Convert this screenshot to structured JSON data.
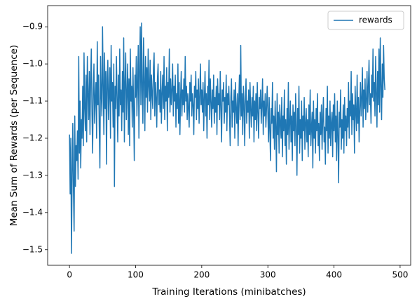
{
  "chart_data": {
    "type": "line",
    "xlabel": "Training Iterations (minibatches)",
    "ylabel": "Mean Sum of Rewards (per Sequence)",
    "legend": "upper right",
    "xlim": [
      -33,
      516
    ],
    "ylim": [
      -1.542,
      -0.843
    ],
    "xticks": [
      0,
      100,
      200,
      300,
      400,
      500
    ],
    "yticks": [
      {
        "value": -1.5,
        "label": "−1.5"
      },
      {
        "value": -1.4,
        "label": "−1.4"
      },
      {
        "value": -1.3,
        "label": "−1.3"
      },
      {
        "value": -1.2,
        "label": "−1.2"
      },
      {
        "value": -1.1,
        "label": "−1.1"
      },
      {
        "value": -1.0,
        "label": "−1.0"
      },
      {
        "value": -0.9,
        "label": "−0.9"
      }
    ],
    "x": [
      0,
      1,
      2,
      3,
      4,
      5,
      6,
      7,
      8,
      9,
      10,
      11,
      12,
      13,
      14,
      15,
      16,
      17,
      18,
      19,
      20,
      21,
      22,
      23,
      24,
      25,
      26,
      27,
      28,
      29,
      30,
      31,
      32,
      33,
      34,
      35,
      36,
      37,
      38,
      39,
      40,
      41,
      42,
      43,
      44,
      45,
      46,
      47,
      48,
      49,
      50,
      51,
      52,
      53,
      54,
      55,
      56,
      57,
      58,
      59,
      60,
      61,
      62,
      63,
      64,
      65,
      66,
      67,
      68,
      69,
      70,
      71,
      72,
      73,
      74,
      75,
      76,
      77,
      78,
      79,
      80,
      81,
      82,
      83,
      84,
      85,
      86,
      87,
      88,
      89,
      90,
      91,
      92,
      93,
      94,
      95,
      96,
      97,
      98,
      99,
      100,
      101,
      102,
      103,
      104,
      105,
      106,
      107,
      108,
      109,
      110,
      111,
      112,
      113,
      114,
      115,
      116,
      117,
      118,
      119,
      120,
      121,
      122,
      123,
      124,
      125,
      126,
      127,
      128,
      129,
      130,
      131,
      132,
      133,
      134,
      135,
      136,
      137,
      138,
      139,
      140,
      141,
      142,
      143,
      144,
      145,
      146,
      147,
      148,
      149,
      150,
      151,
      152,
      153,
      154,
      155,
      156,
      157,
      158,
      159,
      160,
      161,
      162,
      163,
      164,
      165,
      166,
      167,
      168,
      169,
      170,
      171,
      172,
      173,
      174,
      175,
      176,
      177,
      178,
      179,
      180,
      181,
      182,
      183,
      184,
      185,
      186,
      187,
      188,
      189,
      190,
      191,
      192,
      193,
      194,
      195,
      196,
      197,
      198,
      199,
      200,
      201,
      202,
      203,
      204,
      205,
      206,
      207,
      208,
      209,
      210,
      211,
      212,
      213,
      214,
      215,
      216,
      217,
      218,
      219,
      220,
      221,
      222,
      223,
      224,
      225,
      226,
      227,
      228,
      229,
      230,
      231,
      232,
      233,
      234,
      235,
      236,
      237,
      238,
      239,
      240,
      241,
      242,
      243,
      244,
      245,
      246,
      247,
      248,
      249,
      250,
      251,
      252,
      253,
      254,
      255,
      256,
      257,
      258,
      259,
      260,
      261,
      262,
      263,
      264,
      265,
      266,
      267,
      268,
      269,
      270,
      271,
      272,
      273,
      274,
      275,
      276,
      277,
      278,
      279,
      280,
      281,
      282,
      283,
      284,
      285,
      286,
      287,
      288,
      289,
      290,
      291,
      292,
      293,
      294,
      295,
      296,
      297,
      298,
      299,
      300,
      301,
      302,
      303,
      304,
      305,
      306,
      307,
      308,
      309,
      310,
      311,
      312,
      313,
      314,
      315,
      316,
      317,
      318,
      319,
      320,
      321,
      322,
      323,
      324,
      325,
      326,
      327,
      328,
      329,
      330,
      331,
      332,
      333,
      334,
      335,
      336,
      337,
      338,
      339,
      340,
      341,
      342,
      343,
      344,
      345,
      346,
      347,
      348,
      349,
      350,
      351,
      352,
      353,
      354,
      355,
      356,
      357,
      358,
      359,
      360,
      361,
      362,
      363,
      364,
      365,
      366,
      367,
      368,
      369,
      370,
      371,
      372,
      373,
      374,
      375,
      376,
      377,
      378,
      379,
      380,
      381,
      382,
      383,
      384,
      385,
      386,
      387,
      388,
      389,
      390,
      391,
      392,
      393,
      394,
      395,
      396,
      397,
      398,
      399,
      400,
      401,
      402,
      403,
      404,
      405,
      406,
      407,
      408,
      409,
      410,
      411,
      412,
      413,
      414,
      415,
      416,
      417,
      418,
      419,
      420,
      421,
      422,
      423,
      424,
      425,
      426,
      427,
      428,
      429,
      430,
      431,
      432,
      433,
      434,
      435,
      436,
      437,
      438,
      439,
      440,
      441,
      442,
      443,
      444,
      445,
      446,
      447,
      448,
      449,
      450,
      451,
      452,
      453,
      454,
      455,
      456,
      457,
      458,
      459,
      460,
      461,
      462,
      463,
      464,
      465,
      466,
      467,
      468,
      469,
      470,
      471,
      472,
      473,
      474,
      475,
      476,
      477
    ],
    "series": [
      {
        "name": "rewards",
        "color": "#1f77b4",
        "values": [
          -1.19,
          -1.35,
          -1.2,
          -1.51,
          -1.3,
          -1.16,
          -1.34,
          -1.45,
          -1.14,
          -1.33,
          -1.22,
          -1.26,
          -1.18,
          -1.31,
          -0.98,
          -1.24,
          -1.1,
          -1.28,
          -1.15,
          -1.2,
          -1.06,
          -1.22,
          -0.97,
          -1.12,
          -1.18,
          -1.03,
          -1.21,
          -0.98,
          -1.08,
          -1.15,
          -1.02,
          -1.19,
          -1.04,
          -0.96,
          -1.13,
          -1.24,
          -1.07,
          -1.0,
          -1.16,
          -1.09,
          -1.05,
          -1.2,
          -0.94,
          -1.11,
          -1.03,
          -1.17,
          -1.28,
          -0.98,
          -1.08,
          -1.14,
          -0.9,
          -1.06,
          -1.19,
          -0.97,
          -1.12,
          -1.02,
          -1.27,
          -1.04,
          -0.99,
          -1.15,
          -1.08,
          -1.01,
          -1.2,
          -0.95,
          -1.1,
          -1.05,
          -1.17,
          -1.0,
          -1.33,
          -1.06,
          -1.12,
          -0.98,
          -1.09,
          -1.21,
          -1.03,
          -1.14,
          -0.96,
          -1.11,
          -1.07,
          -1.18,
          -1.02,
          -1.13,
          -0.93,
          -1.21,
          -1.05,
          -0.97,
          -1.15,
          -1.08,
          -1.0,
          -1.19,
          -1.04,
          -1.22,
          -0.96,
          -1.1,
          -1.06,
          -1.17,
          -1.01,
          -1.12,
          -1.26,
          -1.03,
          -1.09,
          -0.98,
          -1.14,
          -1.05,
          -0.95,
          -1.2,
          -1.02,
          -0.9,
          -1.11,
          -0.89,
          -1.07,
          -1.16,
          -0.93,
          -1.04,
          -1.18,
          -0.98,
          -1.09,
          -1.01,
          -1.13,
          -0.96,
          -1.06,
          -1.1,
          -0.99,
          -1.15,
          -1.03,
          -1.08,
          -1.12,
          -1.01,
          -0.97,
          -1.14,
          -1.05,
          -1.09,
          -1.17,
          -1.04,
          -1.0,
          -1.11,
          -1.07,
          -1.13,
          -1.02,
          -1.16,
          -1.08,
          -1.03,
          -1.12,
          -0.98,
          -1.15,
          -1.06,
          -1.1,
          -1.01,
          -1.18,
          -1.05,
          -1.09,
          -0.96,
          -1.13,
          -1.04,
          -1.11,
          -1.07,
          -1.0,
          -1.14,
          -1.06,
          -1.1,
          -1.03,
          -1.17,
          -1.08,
          -1.12,
          -1.0,
          -1.16,
          -1.05,
          -1.19,
          -1.09,
          -1.02,
          -1.14,
          -1.07,
          -1.11,
          -1.04,
          -1.13,
          -0.98,
          -1.1,
          -1.06,
          -1.15,
          -1.08,
          -1.12,
          -1.17,
          -1.05,
          -1.1,
          -1.03,
          -1.14,
          -1.08,
          -1.11,
          -1.19,
          -1.06,
          -1.09,
          -1.02,
          -1.15,
          -1.07,
          -1.12,
          -1.04,
          -1.16,
          -1.09,
          -1.0,
          -1.11,
          -1.07,
          -1.13,
          -1.05,
          -1.18,
          -1.09,
          -1.02,
          -1.14,
          -1.08,
          -1.2,
          -1.06,
          -1.11,
          -0.99,
          -1.15,
          -1.04,
          -1.1,
          -1.17,
          -1.07,
          -1.12,
          -1.03,
          -1.16,
          -1.09,
          -1.13,
          -1.06,
          -1.19,
          -1.04,
          -1.11,
          -1.08,
          -1.15,
          -1.02,
          -1.12,
          -1.21,
          -1.07,
          -1.1,
          -1.05,
          -1.16,
          -1.09,
          -1.13,
          -1.03,
          -1.18,
          -1.08,
          -1.11,
          -1.06,
          -1.14,
          -1.22,
          -1.09,
          -1.04,
          -1.17,
          -1.1,
          -1.13,
          -1.07,
          -1.2,
          -1.05,
          -1.12,
          -1.16,
          -1.08,
          -1.22,
          -1.1,
          -1.03,
          -1.15,
          -0.95,
          -1.14,
          -1.08,
          -1.19,
          -1.06,
          -1.11,
          -1.22,
          -1.09,
          -1.04,
          -1.16,
          -1.1,
          -1.13,
          -1.07,
          -1.2,
          -1.05,
          -1.12,
          -1.17,
          -1.09,
          -1.14,
          -1.06,
          -1.21,
          -1.1,
          -1.15,
          -1.08,
          -1.18,
          -1.05,
          -1.13,
          -1.2,
          -1.09,
          -1.12,
          -1.07,
          -1.16,
          -1.11,
          -1.04,
          -1.19,
          -1.1,
          -1.14,
          -1.08,
          -1.17,
          -1.12,
          -1.06,
          -1.13,
          -1.21,
          -1.09,
          -1.18,
          -1.26,
          -1.12,
          -1.16,
          -1.05,
          -1.2,
          -1.14,
          -1.23,
          -1.1,
          -1.17,
          -1.29,
          -1.08,
          -1.19,
          -1.13,
          -1.24,
          -1.11,
          -1.16,
          -1.2,
          -1.09,
          -1.25,
          -1.14,
          -1.18,
          -1.07,
          -1.22,
          -1.15,
          -1.27,
          -1.12,
          -1.19,
          -1.05,
          -1.23,
          -1.16,
          -1.1,
          -1.21,
          -1.14,
          -1.26,
          -1.11,
          -1.18,
          -1.13,
          -1.22,
          -1.08,
          -1.17,
          -1.3,
          -1.12,
          -1.19,
          -1.06,
          -1.24,
          -1.15,
          -1.2,
          -1.1,
          -1.26,
          -1.14,
          -1.18,
          -1.09,
          -1.23,
          -1.16,
          -1.12,
          -1.21,
          -1.15,
          -1.25,
          -1.11,
          -1.19,
          -1.07,
          -1.22,
          -1.17,
          -1.13,
          -1.28,
          -1.1,
          -1.2,
          -1.15,
          -1.24,
          -1.12,
          -1.18,
          -1.08,
          -1.22,
          -1.16,
          -1.26,
          -1.13,
          -1.19,
          -1.11,
          -1.23,
          -1.15,
          -1.09,
          -1.21,
          -1.17,
          -1.27,
          -1.12,
          -1.18,
          -1.06,
          -1.24,
          -1.14,
          -1.2,
          -1.1,
          -1.22,
          -1.16,
          -1.13,
          -1.25,
          -1.11,
          -1.18,
          -1.08,
          -1.21,
          -1.14,
          -1.26,
          -1.1,
          -1.19,
          -1.32,
          -1.13,
          -1.17,
          -1.07,
          -1.23,
          -1.15,
          -1.2,
          -1.11,
          -1.24,
          -1.09,
          -1.18,
          -1.14,
          -1.22,
          -1.12,
          -1.17,
          -1.05,
          -1.2,
          -1.1,
          -1.14,
          -1.02,
          -1.19,
          -1.08,
          -1.15,
          -1.11,
          -1.24,
          -1.06,
          -1.13,
          -1.18,
          -1.03,
          -1.16,
          -1.09,
          -1.21,
          -1.12,
          -1.05,
          -1.14,
          -1.09,
          -1.01,
          -1.17,
          -1.07,
          -1.12,
          -1.04,
          -1.15,
          -1.1,
          -1.02,
          -1.13,
          -1.06,
          -0.99,
          -1.11,
          -1.08,
          -1.16,
          -1.03,
          -1.09,
          -0.96,
          -1.1,
          -1.05,
          -1.14,
          -0.98,
          -1.08,
          -1.17,
          -1.02,
          -1.11,
          -0.96,
          -1.13,
          -0.93,
          -1.06,
          -1.15,
          -1.0,
          -1.09,
          -0.95,
          -1.04,
          -1.07
        ]
      }
    ]
  }
}
